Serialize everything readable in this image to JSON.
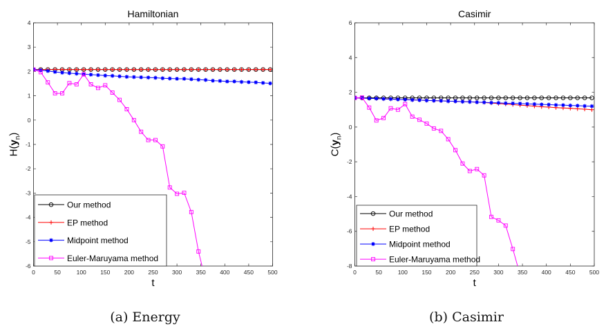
{
  "chart_data": [
    {
      "type": "line",
      "title": "Hamiltonian",
      "caption": "(a)  Energy",
      "xlabel": "t",
      "ylabel_main": "H(",
      "ylabel_bold": "y",
      "ylabel_sub": "n",
      "ylabel_close": ")",
      "xlim": [
        0,
        500
      ],
      "ylim": [
        -6,
        4
      ],
      "xticks": [
        0,
        50,
        100,
        150,
        200,
        250,
        300,
        350,
        400,
        450,
        500
      ],
      "yticks": [
        -6,
        -5,
        -4,
        -3,
        -2,
        -1,
        0,
        1,
        2,
        3,
        4
      ],
      "grid": false,
      "legend_placement": "bottom-left",
      "x_step": 15,
      "series": [
        {
          "name": "Our method",
          "color": "#000000",
          "marker": "circle",
          "values": [
            2.08,
            2.08,
            2.08,
            2.08,
            2.08,
            2.08,
            2.08,
            2.08,
            2.08,
            2.08,
            2.08,
            2.08,
            2.08,
            2.08,
            2.08,
            2.08,
            2.08,
            2.08,
            2.08,
            2.08,
            2.08,
            2.08,
            2.08,
            2.08,
            2.08,
            2.08,
            2.08,
            2.08,
            2.08,
            2.08,
            2.08,
            2.08,
            2.08,
            2.08
          ]
        },
        {
          "name": "EP method",
          "color": "#ff0000",
          "marker": "plus",
          "values": [
            2.08,
            2.08,
            2.08,
            2.08,
            2.08,
            2.08,
            2.08,
            2.08,
            2.08,
            2.08,
            2.08,
            2.08,
            2.08,
            2.08,
            2.08,
            2.08,
            2.08,
            2.08,
            2.08,
            2.08,
            2.08,
            2.08,
            2.08,
            2.08,
            2.08,
            2.08,
            2.08,
            2.08,
            2.08,
            2.08,
            2.08,
            2.08,
            2.08,
            2.08
          ]
        },
        {
          "name": "Midpoint method",
          "color": "#0000ff",
          "marker": "star",
          "values": [
            2.08,
            2.05,
            2.02,
            1.98,
            1.95,
            1.93,
            1.91,
            1.89,
            1.87,
            1.85,
            1.83,
            1.82,
            1.8,
            1.78,
            1.77,
            1.76,
            1.75,
            1.74,
            1.72,
            1.71,
            1.7,
            1.7,
            1.68,
            1.66,
            1.65,
            1.62,
            1.61,
            1.59,
            1.59,
            1.57,
            1.56,
            1.55,
            1.53,
            1.51
          ]
        },
        {
          "name": "Euler-Maruyama method",
          "color": "#ff00ff",
          "marker": "square",
          "values": [
            2.08,
            1.97,
            1.55,
            1.1,
            1.1,
            1.52,
            1.47,
            1.88,
            1.47,
            1.32,
            1.43,
            1.13,
            0.83,
            0.45,
            0.0,
            -0.48,
            -0.82,
            -0.82,
            -1.08,
            -2.77,
            -3.03,
            -2.99,
            -3.78,
            -5.4,
            -6.6
          ]
        }
      ]
    },
    {
      "type": "line",
      "title": "Casimir",
      "caption": "(b)  Casimir",
      "xlabel": "t",
      "ylabel_main": "C(",
      "ylabel_bold": "y",
      "ylabel_sub": "n",
      "ylabel_close": ")",
      "xlim": [
        0,
        500
      ],
      "ylim": [
        -8,
        6
      ],
      "xticks": [
        0,
        50,
        100,
        150,
        200,
        250,
        300,
        350,
        400,
        450,
        500
      ],
      "yticks": [
        -8,
        -6,
        -4,
        -2,
        0,
        2,
        4,
        6
      ],
      "grid": false,
      "legend_placement": "bottom-left",
      "x_step": 15,
      "series": [
        {
          "name": "Our method",
          "color": "#000000",
          "marker": "circle",
          "values": [
            1.68,
            1.68,
            1.68,
            1.68,
            1.68,
            1.68,
            1.68,
            1.68,
            1.68,
            1.68,
            1.68,
            1.68,
            1.68,
            1.68,
            1.68,
            1.68,
            1.68,
            1.68,
            1.68,
            1.68,
            1.68,
            1.68,
            1.68,
            1.68,
            1.68,
            1.68,
            1.68,
            1.68,
            1.68,
            1.68,
            1.68,
            1.68,
            1.68,
            1.68
          ]
        },
        {
          "name": "EP method",
          "color": "#ff0000",
          "marker": "plus",
          "values": [
            1.68,
            1.67,
            1.65,
            1.64,
            1.62,
            1.61,
            1.59,
            1.58,
            1.56,
            1.55,
            1.53,
            1.52,
            1.51,
            1.49,
            1.48,
            1.46,
            1.45,
            1.43,
            1.41,
            1.38,
            1.35,
            1.32,
            1.29,
            1.26,
            1.23,
            1.2,
            1.17,
            1.15,
            1.12,
            1.1,
            1.08,
            1.05,
            1.03,
            1.0
          ]
        },
        {
          "name": "Midpoint method",
          "color": "#0000ff",
          "marker": "star",
          "values": [
            1.68,
            1.67,
            1.65,
            1.64,
            1.62,
            1.61,
            1.59,
            1.58,
            1.56,
            1.55,
            1.53,
            1.52,
            1.51,
            1.49,
            1.48,
            1.46,
            1.45,
            1.43,
            1.42,
            1.4,
            1.39,
            1.37,
            1.36,
            1.35,
            1.33,
            1.32,
            1.3,
            1.29,
            1.27,
            1.26,
            1.24,
            1.23,
            1.21,
            1.2
          ]
        },
        {
          "name": "Euler-Maruyama method",
          "color": "#ff00ff",
          "marker": "square",
          "values": [
            1.68,
            1.7,
            1.12,
            0.38,
            0.52,
            1.08,
            1.0,
            1.32,
            0.6,
            0.42,
            0.2,
            -0.08,
            -0.22,
            -0.7,
            -1.33,
            -2.1,
            -2.53,
            -2.42,
            -2.78,
            -5.17,
            -5.37,
            -5.67,
            -7.02,
            -8.5
          ]
        }
      ]
    }
  ]
}
